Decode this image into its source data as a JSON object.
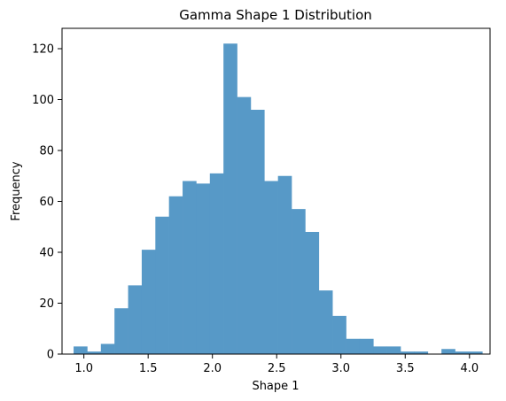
{
  "chart_data": {
    "type": "bar",
    "subtype": "histogram",
    "title": "Gamma Shape 1 Distribution",
    "xlabel": "Shape 1",
    "ylabel": "Frequency",
    "xlim": [
      0.83,
      4.16
    ],
    "ylim": [
      0,
      128
    ],
    "x_ticks": [
      1.0,
      1.5,
      2.0,
      2.5,
      3.0,
      3.5,
      4.0
    ],
    "x_tick_labels": [
      "1.0",
      "1.5",
      "2.0",
      "2.5",
      "3.0",
      "3.5",
      "4.0"
    ],
    "y_ticks": [
      0,
      20,
      40,
      60,
      80,
      100,
      120
    ],
    "y_tick_labels": [
      "0",
      "20",
      "40",
      "60",
      "80",
      "100",
      "120"
    ],
    "bin_edges": [
      0.92,
      1.026,
      1.132,
      1.238,
      1.344,
      1.45,
      1.556,
      1.662,
      1.768,
      1.874,
      1.98,
      2.086,
      2.192,
      2.298,
      2.404,
      2.51,
      2.616,
      2.722,
      2.828,
      2.934,
      3.04,
      3.146,
      3.252,
      3.358,
      3.464,
      3.57,
      3.676,
      3.782,
      3.888,
      3.994,
      4.1
    ],
    "counts": [
      3,
      1,
      4,
      18,
      27,
      41,
      54,
      62,
      68,
      67,
      71,
      122,
      101,
      96,
      68,
      70,
      57,
      48,
      25,
      15,
      6,
      6,
      3,
      3,
      1,
      1,
      0,
      2,
      1,
      1
    ],
    "bar_color": "#5799c7",
    "grid": false,
    "legend": "none"
  }
}
